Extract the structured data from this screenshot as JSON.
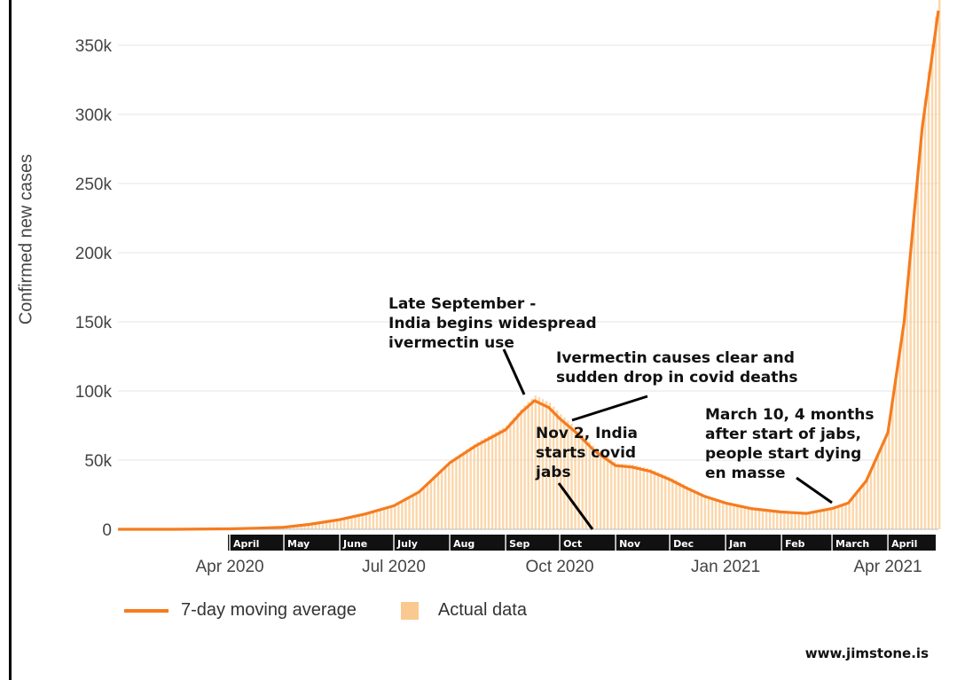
{
  "chart_data": {
    "type": "line",
    "ylabel": "Confirmed new cases",
    "ylim": [
      0,
      375000
    ],
    "y_ticks": [
      {
        "value": 0,
        "label": "0"
      },
      {
        "value": 50000,
        "label": "50k"
      },
      {
        "value": 100000,
        "label": "100k"
      },
      {
        "value": 150000,
        "label": "150k"
      },
      {
        "value": 200000,
        "label": "200k"
      },
      {
        "value": 250000,
        "label": "250k"
      },
      {
        "value": 300000,
        "label": "300k"
      },
      {
        "value": 350000,
        "label": "350k"
      }
    ],
    "x_range": [
      "2020-01-30",
      "2021-04-29"
    ],
    "x_ticks": [
      {
        "date": "2020-04-01",
        "label": "Apr 2020"
      },
      {
        "date": "2020-07-01",
        "label": "Jul 2020"
      },
      {
        "date": "2020-10-01",
        "label": "Oct 2020"
      },
      {
        "date": "2021-01-01",
        "label": "Jan 2021"
      },
      {
        "date": "2021-04-01",
        "label": "Apr 2021"
      }
    ],
    "month_strip": [
      {
        "label": "April",
        "start": "2020-04-01",
        "end": "2020-05-01"
      },
      {
        "label": "May",
        "start": "2020-05-01",
        "end": "2020-06-01"
      },
      {
        "label": "June",
        "start": "2020-06-01",
        "end": "2020-07-01"
      },
      {
        "label": "July",
        "start": "2020-07-01",
        "end": "2020-08-01"
      },
      {
        "label": "Aug",
        "start": "2020-08-01",
        "end": "2020-09-01"
      },
      {
        "label": "Sep",
        "start": "2020-09-01",
        "end": "2020-10-01"
      },
      {
        "label": "Oct",
        "start": "2020-10-01",
        "end": "2020-11-01"
      },
      {
        "label": "Nov",
        "start": "2020-11-01",
        "end": "2020-12-01"
      },
      {
        "label": "Dec",
        "start": "2020-12-01",
        "end": "2021-01-01"
      },
      {
        "label": "Jan",
        "start": "2021-01-01",
        "end": "2021-02-01"
      },
      {
        "label": "Feb",
        "start": "2021-02-01",
        "end": "2021-03-01"
      },
      {
        "label": "March",
        "start": "2021-03-01",
        "end": "2021-04-01"
      },
      {
        "label": "April",
        "start": "2021-04-01",
        "end": "2021-04-30"
      }
    ],
    "series": [
      {
        "name": "7-day moving average",
        "color": "#f57c1f",
        "points": [
          [
            "2020-01-30",
            0
          ],
          [
            "2020-03-01",
            0
          ],
          [
            "2020-04-01",
            300
          ],
          [
            "2020-04-15",
            800
          ],
          [
            "2020-05-01",
            1500
          ],
          [
            "2020-05-15",
            3500
          ],
          [
            "2020-06-01",
            7000
          ],
          [
            "2020-06-15",
            11000
          ],
          [
            "2020-07-01",
            17000
          ],
          [
            "2020-07-15",
            27000
          ],
          [
            "2020-08-01",
            48000
          ],
          [
            "2020-08-15",
            60000
          ],
          [
            "2020-09-01",
            72000
          ],
          [
            "2020-09-10",
            85000
          ],
          [
            "2020-09-17",
            93000
          ],
          [
            "2020-09-25",
            88000
          ],
          [
            "2020-10-01",
            80000
          ],
          [
            "2020-10-10",
            70000
          ],
          [
            "2020-10-20",
            57000
          ],
          [
            "2020-11-01",
            46000
          ],
          [
            "2020-11-10",
            45000
          ],
          [
            "2020-11-20",
            42000
          ],
          [
            "2020-12-01",
            36000
          ],
          [
            "2020-12-10",
            30000
          ],
          [
            "2020-12-20",
            24000
          ],
          [
            "2021-01-01",
            19000
          ],
          [
            "2021-01-15",
            15000
          ],
          [
            "2021-02-01",
            12500
          ],
          [
            "2021-02-15",
            11500
          ],
          [
            "2021-03-01",
            15000
          ],
          [
            "2021-03-10",
            19000
          ],
          [
            "2021-03-20",
            35000
          ],
          [
            "2021-04-01",
            70000
          ],
          [
            "2021-04-10",
            150000
          ],
          [
            "2021-04-20",
            290000
          ],
          [
            "2021-04-29",
            375000
          ]
        ]
      },
      {
        "name": "Actual data",
        "color": "#f9c98f"
      }
    ],
    "annotations": [
      {
        "text": "Late September -\nIndia begins widespread\nivermectin use",
        "date": "2020-09-18",
        "value": 93000
      },
      {
        "text": "Ivermectin causes clear and\nsudden drop in covid deaths",
        "date": "2020-10-05",
        "value": 78000
      },
      {
        "text": "Nov 2, India\nstarts covid\njabs",
        "date": "2020-11-02",
        "value": 0
      },
      {
        "text": "March 10, 4 months\nafter start of jabs,\npeople start dying\nen masse",
        "date": "2021-03-10",
        "value": 19000
      }
    ],
    "grid": "horizontal",
    "legend_position": "bottom-left"
  },
  "watermark": "www.jimstone.is"
}
